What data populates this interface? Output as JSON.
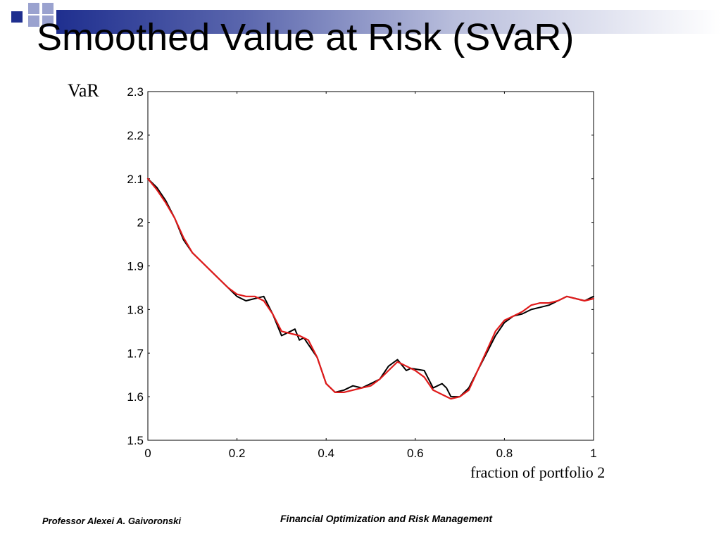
{
  "slide": {
    "title": "Smoothed Value at Risk (SVaR)",
    "footer_left": "Professor Alexei A. Gaivoronski",
    "footer_right": "Financial Optimization and Risk Management"
  },
  "colors": {
    "accent_dark": "#1f2f8f",
    "accent_light": "#9aa2cf",
    "series_raw": "#000000",
    "series_smoothed": "#e01a1a"
  },
  "chart_data": {
    "type": "line",
    "title": "",
    "xlabel": "fraction of portfolio 2",
    "ylabel": "VaR",
    "xlim": [
      0,
      1
    ],
    "ylim": [
      1.5,
      2.3
    ],
    "xticks": [
      "0",
      "0.2",
      "0.4",
      "0.6",
      "0.8",
      "1"
    ],
    "yticks": [
      "1.5",
      "1.6",
      "1.7",
      "1.8",
      "1.9",
      "2",
      "2.1",
      "2.2",
      "2.3"
    ],
    "grid": false,
    "series": [
      {
        "color": "#000000",
        "x": [
          0,
          0.02,
          0.04,
          0.06,
          0.08,
          0.1,
          0.12,
          0.14,
          0.16,
          0.18,
          0.2,
          0.22,
          0.24,
          0.26,
          0.28,
          0.3,
          0.32,
          0.33,
          0.34,
          0.35,
          0.36,
          0.38,
          0.4,
          0.42,
          0.44,
          0.46,
          0.48,
          0.5,
          0.52,
          0.54,
          0.56,
          0.58,
          0.59,
          0.62,
          0.64,
          0.66,
          0.67,
          0.68,
          0.7,
          0.72,
          0.74,
          0.76,
          0.78,
          0.8,
          0.82,
          0.84,
          0.86,
          0.88,
          0.9,
          0.92,
          0.94,
          0.96,
          0.98,
          1.0
        ],
        "y": [
          2.1,
          2.08,
          2.05,
          2.01,
          1.96,
          1.93,
          1.91,
          1.89,
          1.87,
          1.85,
          1.83,
          1.82,
          1.825,
          1.83,
          1.79,
          1.74,
          1.75,
          1.755,
          1.73,
          1.735,
          1.72,
          1.69,
          1.63,
          1.61,
          1.615,
          1.625,
          1.62,
          1.63,
          1.64,
          1.67,
          1.685,
          1.66,
          1.665,
          1.66,
          1.62,
          1.63,
          1.62,
          1.6,
          1.6,
          1.62,
          1.66,
          1.7,
          1.74,
          1.77,
          1.785,
          1.79,
          1.8,
          1.805,
          1.81,
          1.82,
          1.83,
          1.825,
          1.82,
          1.83
        ]
      },
      {
        "color": "#e01a1a",
        "x": [
          0,
          0.02,
          0.04,
          0.06,
          0.08,
          0.1,
          0.12,
          0.14,
          0.16,
          0.18,
          0.2,
          0.22,
          0.24,
          0.26,
          0.28,
          0.3,
          0.32,
          0.34,
          0.36,
          0.38,
          0.4,
          0.42,
          0.44,
          0.46,
          0.48,
          0.5,
          0.52,
          0.54,
          0.56,
          0.58,
          0.6,
          0.62,
          0.64,
          0.66,
          0.68,
          0.7,
          0.72,
          0.74,
          0.76,
          0.78,
          0.8,
          0.82,
          0.84,
          0.86,
          0.88,
          0.9,
          0.92,
          0.94,
          0.96,
          0.98,
          1.0
        ],
        "y": [
          2.1,
          2.075,
          2.045,
          2.01,
          1.965,
          1.93,
          1.91,
          1.89,
          1.87,
          1.85,
          1.835,
          1.83,
          1.83,
          1.82,
          1.79,
          1.75,
          1.745,
          1.74,
          1.73,
          1.69,
          1.63,
          1.61,
          1.61,
          1.615,
          1.62,
          1.625,
          1.64,
          1.66,
          1.68,
          1.67,
          1.66,
          1.645,
          1.615,
          1.605,
          1.595,
          1.6,
          1.615,
          1.66,
          1.705,
          1.75,
          1.775,
          1.785,
          1.795,
          1.81,
          1.815,
          1.815,
          1.82,
          1.83,
          1.825,
          1.82,
          1.825
        ]
      }
    ]
  }
}
